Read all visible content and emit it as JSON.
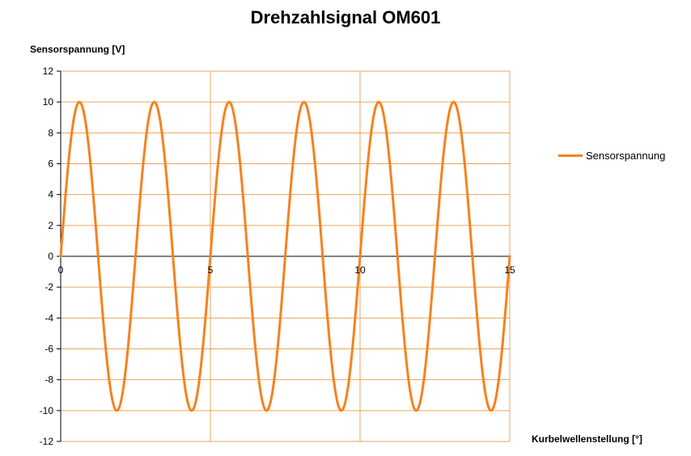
{
  "chart_data": {
    "type": "line",
    "title": "Drehzahlsignal OM601",
    "xlabel": "Kurbelwellenstellung [°]",
    "ylabel": "Sensorspannung [V]",
    "xlim": [
      0,
      15
    ],
    "ylim": [
      -12,
      12
    ],
    "x_ticks": [
      0,
      5,
      10,
      15
    ],
    "y_ticks": [
      12,
      10,
      8,
      6,
      4,
      2,
      0,
      -2,
      -4,
      -6,
      -8,
      -10,
      -12
    ],
    "grid": true,
    "legend_position": "right",
    "series": [
      {
        "name": "Sensorspannung",
        "color": "#f5821f",
        "function": "10*sin(2*pi*x/2.5)",
        "amplitude": 10,
        "period": 2.5,
        "x_range": [
          0,
          15
        ],
        "peaks": [
          [
            0.625,
            10
          ],
          [
            3.125,
            10
          ],
          [
            5.625,
            10
          ],
          [
            8.125,
            10
          ],
          [
            10.625,
            10
          ],
          [
            13.125,
            10
          ]
        ],
        "troughs": [
          [
            1.875,
            -10
          ],
          [
            4.375,
            -10
          ],
          [
            6.875,
            -10
          ],
          [
            9.375,
            -10
          ],
          [
            11.875,
            -10
          ],
          [
            14.375,
            -10
          ]
        ]
      }
    ]
  },
  "colors": {
    "grid": "#e8a65c",
    "axis": "#000000",
    "series": "#f5821f"
  }
}
